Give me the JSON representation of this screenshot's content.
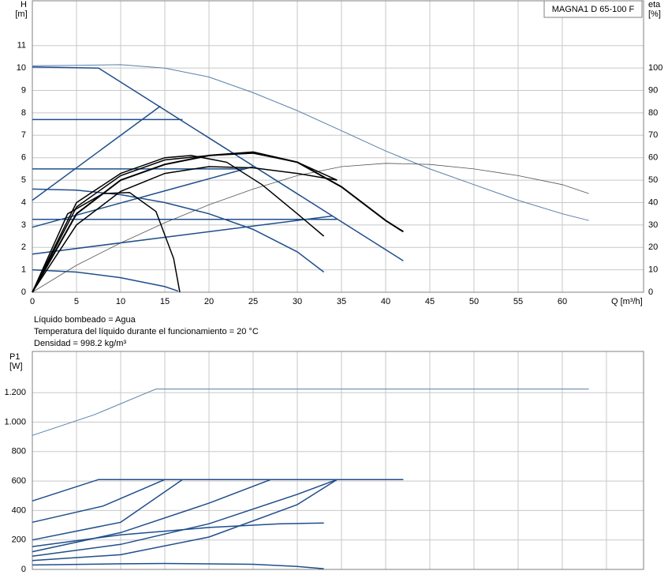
{
  "chart_data": [
    {
      "type": "line",
      "title": "MAGNA1 D 65-100 F",
      "ylabel": "H",
      "yunit": "[m]",
      "y2label": "eta",
      "y2unit": "[%]",
      "xlabel": "Q [m³/h]",
      "xlim": [
        0,
        69.2
      ],
      "xticks": [
        0,
        5,
        10,
        15,
        20,
        25,
        30,
        35,
        40,
        45,
        50,
        55,
        60
      ],
      "xtick_labels": true,
      "ylim": [
        0,
        13
      ],
      "yticks": [
        0,
        1,
        2,
        3,
        4,
        5,
        6,
        7,
        8,
        9,
        10,
        11
      ],
      "y2lim": [
        0,
        130
      ],
      "y2ticks": [
        0,
        10,
        20,
        30,
        40,
        50,
        60,
        70,
        80,
        90,
        100
      ],
      "grid": true,
      "series": [
        {
          "color": "#5a7fa8",
          "width": 1,
          "x": [
            0,
            5,
            10,
            15,
            20,
            25,
            30,
            35,
            40,
            45,
            50,
            55,
            60,
            63
          ],
          "values": [
            10.1,
            10.12,
            10.15,
            10.0,
            9.6,
            8.9,
            8.1,
            7.2,
            6.3,
            5.5,
            4.8,
            4.1,
            3.5,
            3.2
          ]
        },
        {
          "color": "#555555",
          "width": 0.8,
          "axis": "y2",
          "x": [
            0,
            5,
            10,
            15,
            20,
            25,
            30,
            35,
            40,
            45,
            50,
            55,
            60,
            63
          ],
          "values": [
            0,
            12,
            22,
            31,
            39,
            46,
            52,
            56,
            57.5,
            57,
            55,
            52,
            48,
            44
          ]
        },
        {
          "color": "#1f4e8c",
          "width": 1.5,
          "x": [
            0,
            7.5,
            42
          ],
          "values": [
            10.05,
            10.0,
            1.4
          ]
        },
        {
          "color": "#1f4e8c",
          "width": 1.5,
          "x": [
            0,
            17
          ],
          "values": [
            7.7,
            7.7
          ]
        },
        {
          "color": "#1f4e8c",
          "width": 1.5,
          "x": [
            0,
            24
          ],
          "values": [
            5.5,
            5.5
          ]
        },
        {
          "color": "#1f4e8c",
          "width": 1.5,
          "x": [
            0,
            34.5
          ],
          "values": [
            3.25,
            3.25
          ]
        },
        {
          "color": "#1f4e8c",
          "width": 1.5,
          "x": [
            0,
            14.5
          ],
          "values": [
            4.1,
            8.3
          ]
        },
        {
          "color": "#1f4e8c",
          "width": 1.5,
          "x": [
            0,
            25
          ],
          "values": [
            2.9,
            5.6
          ]
        },
        {
          "color": "#1f4e8c",
          "width": 1.5,
          "x": [
            0,
            34
          ],
          "values": [
            1.7,
            3.4
          ]
        },
        {
          "color": "#1f4e8c",
          "width": 1.5,
          "x": [
            0,
            5,
            10,
            15,
            20,
            25,
            30,
            33
          ],
          "values": [
            4.6,
            4.55,
            4.35,
            4.0,
            3.5,
            2.8,
            1.8,
            0.9
          ]
        },
        {
          "color": "#1f4e8c",
          "width": 1.5,
          "x": [
            0,
            5,
            10,
            15,
            16.5
          ],
          "values": [
            1.0,
            0.9,
            0.65,
            0.25,
            0.05
          ]
        },
        {
          "color": "#000000",
          "width": 1.5,
          "axis": "y2",
          "x": [
            0,
            4,
            8,
            11,
            14,
            16,
            16.7
          ],
          "values": [
            0,
            35,
            44,
            44.5,
            36,
            15,
            0
          ]
        },
        {
          "color": "#000000",
          "width": 1.5,
          "axis": "y2",
          "x": [
            0,
            5,
            10,
            15,
            18,
            22,
            26,
            30,
            33
          ],
          "values": [
            0,
            40,
            53,
            60,
            61,
            58,
            48,
            35,
            25
          ]
        },
        {
          "color": "#000000",
          "width": 1.5,
          "axis": "y2",
          "x": [
            0,
            5,
            10,
            15,
            20,
            25,
            30,
            34.5
          ],
          "values": [
            0,
            38,
            52,
            59,
            61,
            62,
            58,
            50
          ]
        },
        {
          "color": "#000000",
          "width": 2,
          "axis": "y2",
          "x": [
            0,
            5,
            10,
            15,
            20,
            25,
            30,
            35,
            40,
            42
          ],
          "values": [
            0,
            35,
            50,
            57,
            61,
            62.5,
            58,
            47,
            32,
            27
          ]
        },
        {
          "color": "#000000",
          "width": 1.5,
          "axis": "y2",
          "x": [
            0,
            5,
            10,
            15,
            20,
            25,
            30,
            34.5
          ],
          "values": [
            0,
            30,
            45,
            53,
            56,
            55.5,
            53,
            50
          ]
        }
      ]
    },
    {
      "type": "line",
      "ylabel": "P1",
      "yunit": "[W]",
      "notes": [
        "Líquido bombeado = Agua",
        "Temperatura del líquido durante el funcionamiento = 20 °C",
        "Densidad = 998.2 kg/m³"
      ],
      "xlim": [
        0,
        69.2
      ],
      "xticks": [
        0,
        5,
        10,
        15,
        20,
        25,
        30,
        35,
        40,
        45,
        50,
        55,
        60,
        65
      ],
      "xtick_labels": false,
      "ylim": [
        0,
        1480
      ],
      "yticks": [
        0,
        200,
        400,
        600,
        800,
        {
          "value": 1000,
          "label": "1.000"
        },
        {
          "value": 1200,
          "label": "1.200"
        }
      ],
      "grid": true,
      "series": [
        {
          "color": "#5a7fa8",
          "width": 1,
          "x": [
            0,
            7,
            13,
            14,
            63
          ],
          "values": [
            910,
            1050,
            1200,
            1225,
            1225
          ]
        },
        {
          "color": "#1f4e8c",
          "width": 1.5,
          "x": [
            0,
            7.5,
            42
          ],
          "values": [
            465,
            610,
            610
          ]
        },
        {
          "color": "#1f4e8c",
          "width": 1.5,
          "x": [
            0,
            8,
            15
          ],
          "values": [
            320,
            430,
            610
          ]
        },
        {
          "color": "#1f4e8c",
          "width": 1.5,
          "x": [
            0,
            10,
            17
          ],
          "values": [
            200,
            320,
            610
          ]
        },
        {
          "color": "#1f4e8c",
          "width": 1.5,
          "x": [
            0,
            10,
            20,
            27
          ],
          "values": [
            120,
            250,
            450,
            610
          ]
        },
        {
          "color": "#1f4e8c",
          "width": 1.5,
          "x": [
            0,
            10,
            20,
            30,
            34.5
          ],
          "values": [
            90,
            170,
            310,
            510,
            610
          ]
        },
        {
          "color": "#1f4e8c",
          "width": 1.5,
          "x": [
            0,
            10,
            20,
            28,
            33
          ],
          "values": [
            155,
            235,
            285,
            310,
            315
          ]
        },
        {
          "color": "#1f4e8c",
          "width": 1.5,
          "x": [
            0,
            10,
            20,
            30,
            34.5
          ],
          "values": [
            60,
            100,
            220,
            440,
            610
          ]
        },
        {
          "color": "#1f4e8c",
          "width": 1.5,
          "x": [
            0,
            10,
            15,
            25,
            30,
            33
          ],
          "values": [
            30,
            38,
            40,
            35,
            20,
            5
          ]
        }
      ]
    }
  ]
}
